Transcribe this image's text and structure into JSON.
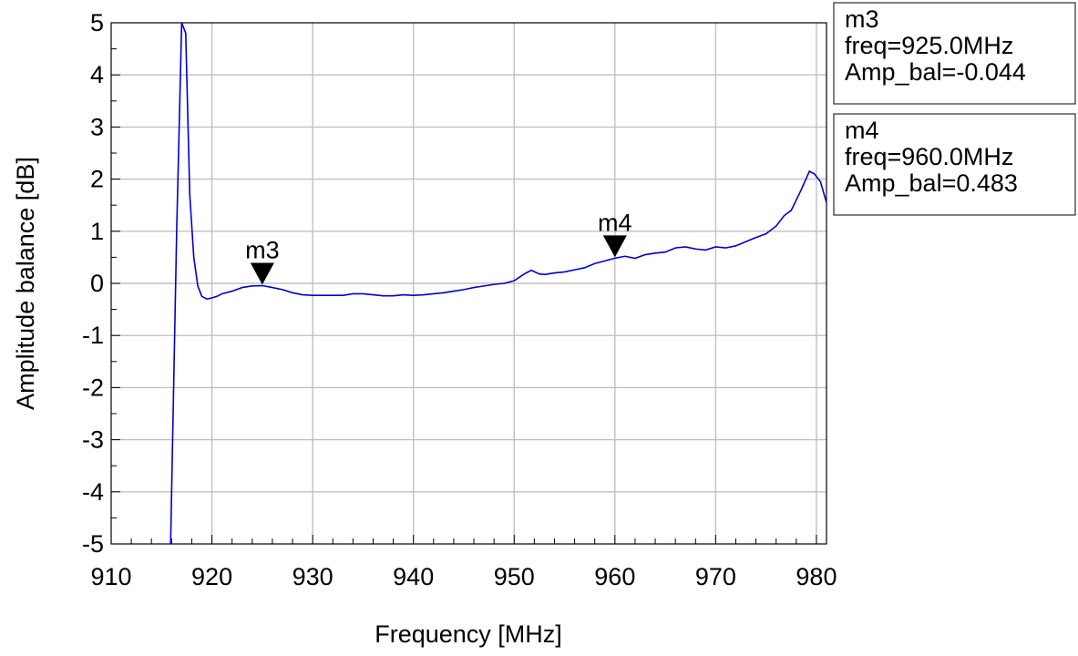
{
  "chart_data": {
    "type": "line",
    "xlabel": "Frequency [MHz]",
    "ylabel": "Amplitude balance [dB]",
    "xlim": [
      910,
      981
    ],
    "ylim": [
      -5,
      5
    ],
    "xticks": [
      910,
      920,
      930,
      940,
      950,
      960,
      970,
      980
    ],
    "yticks": [
      -5,
      -4,
      -3,
      -2,
      -1,
      0,
      1,
      2,
      3,
      4,
      5
    ],
    "grid": true,
    "line_color": "#0000cc",
    "series": [
      {
        "x": [
          915.9,
          916.5,
          917.0,
          917.4,
          917.8,
          918.2,
          918.6,
          919.0,
          919.5,
          920.0,
          920.5,
          921.0,
          922.0,
          923.0,
          924.0,
          925.0,
          926.0,
          927.0,
          928.0,
          929.0,
          930.0,
          931.0,
          932.0,
          933.0,
          934.0,
          935.0,
          936.0,
          937.0,
          938.0,
          939.0,
          940.0,
          941.0,
          942.0,
          943.0,
          944.0,
          945.0,
          946.0,
          947.0,
          948.0,
          949.0,
          950.0,
          951.0,
          951.7,
          952.5,
          953.0,
          954.0,
          955.0,
          956.0,
          957.0,
          958.0,
          959.0,
          960.0,
          961.0,
          962.0,
          963.0,
          964.0,
          965.0,
          966.0,
          967.0,
          968.0,
          969.0,
          970.0,
          971.0,
          972.0,
          973.0,
          974.0,
          975.0,
          976.0,
          976.8,
          977.5,
          978.5,
          979.3,
          979.8,
          980.4,
          980.7,
          981.0
        ],
        "values": [
          -5.0,
          1.0,
          5.0,
          4.8,
          1.7,
          0.5,
          -0.05,
          -0.25,
          -0.3,
          -0.28,
          -0.25,
          -0.2,
          -0.15,
          -0.08,
          -0.05,
          -0.044,
          -0.08,
          -0.12,
          -0.18,
          -0.22,
          -0.23,
          -0.23,
          -0.23,
          -0.23,
          -0.2,
          -0.2,
          -0.22,
          -0.24,
          -0.24,
          -0.22,
          -0.23,
          -0.22,
          -0.2,
          -0.18,
          -0.15,
          -0.12,
          -0.08,
          -0.05,
          -0.02,
          0.0,
          0.05,
          0.18,
          0.25,
          0.18,
          0.17,
          0.2,
          0.22,
          0.26,
          0.3,
          0.38,
          0.43,
          0.483,
          0.52,
          0.48,
          0.55,
          0.58,
          0.6,
          0.68,
          0.7,
          0.66,
          0.64,
          0.7,
          0.68,
          0.72,
          0.8,
          0.88,
          0.95,
          1.1,
          1.3,
          1.4,
          1.8,
          2.15,
          2.1,
          1.95,
          1.75,
          1.55
        ]
      }
    ],
    "markers": [
      {
        "name": "m3",
        "x": 925.0,
        "y": -0.044,
        "box_lines": [
          "m3",
          "freq=925.0MHz",
          "Amp_bal=-0.044"
        ]
      },
      {
        "name": "m4",
        "x": 960.0,
        "y": 0.483,
        "box_lines": [
          "m4",
          "freq=960.0MHz",
          "Amp_bal=0.483"
        ]
      }
    ]
  }
}
